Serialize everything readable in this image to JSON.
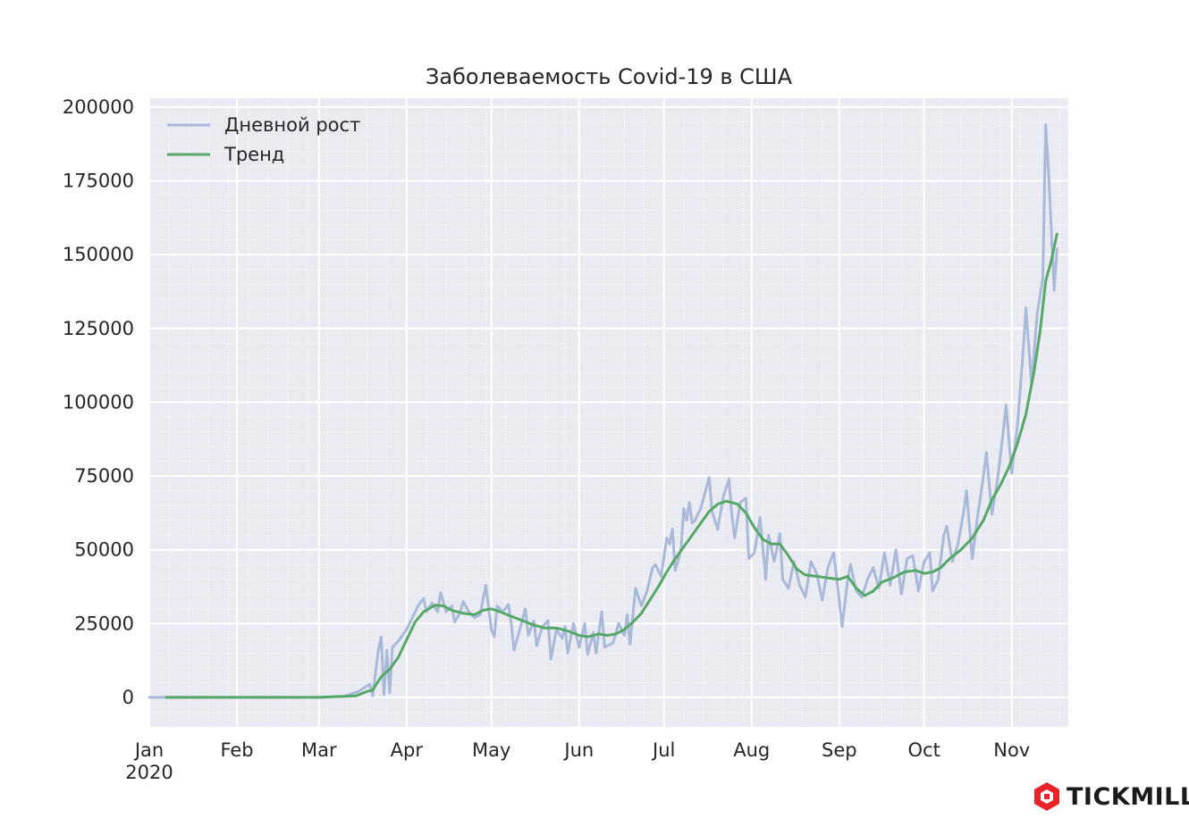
{
  "chart_data": {
    "type": "line",
    "title": "Заболеваемость Covid-19 в США",
    "xlabel": "",
    "ylabel": "",
    "x_range": [
      "2020-01-01",
      "2020-11-21"
    ],
    "ylim": [
      -10000,
      203000
    ],
    "y_ticks": [
      0,
      25000,
      50000,
      75000,
      100000,
      125000,
      150000,
      175000,
      200000
    ],
    "x_ticks": [
      {
        "date": "2020-01-01",
        "label": "Jan",
        "sublabel": "2020"
      },
      {
        "date": "2020-02-01",
        "label": "Feb"
      },
      {
        "date": "2020-03-01",
        "label": "Mar"
      },
      {
        "date": "2020-04-01",
        "label": "Apr"
      },
      {
        "date": "2020-05-01",
        "label": "May"
      },
      {
        "date": "2020-06-01",
        "label": "Jun"
      },
      {
        "date": "2020-07-01",
        "label": "Jul"
      },
      {
        "date": "2020-08-01",
        "label": "Aug"
      },
      {
        "date": "2020-09-01",
        "label": "Sep"
      },
      {
        "date": "2020-10-01",
        "label": "Oct"
      },
      {
        "date": "2020-11-01",
        "label": "Nov"
      }
    ],
    "grid": true,
    "legend": "top-left",
    "series": [
      {
        "name": "Дневной рост",
        "color": "#a9bad9",
        "points": [
          [
            "2020-01-01",
            0
          ],
          [
            "2020-03-01",
            0
          ],
          [
            "2020-03-10",
            400
          ],
          [
            "2020-03-15",
            2000
          ],
          [
            "2020-03-19",
            4500
          ],
          [
            "2020-03-20",
            500
          ],
          [
            "2020-03-22",
            16000
          ],
          [
            "2020-03-23",
            20500
          ],
          [
            "2020-03-24",
            1000
          ],
          [
            "2020-03-25",
            16000
          ],
          [
            "2020-03-26",
            1500
          ],
          [
            "2020-03-27",
            17000
          ],
          [
            "2020-03-29",
            19000
          ],
          [
            "2020-04-01",
            23000
          ],
          [
            "2020-04-03",
            27000
          ],
          [
            "2020-04-05",
            31000
          ],
          [
            "2020-04-07",
            33500
          ],
          [
            "2020-04-08",
            29000
          ],
          [
            "2020-04-10",
            32000
          ],
          [
            "2020-04-12",
            29000
          ],
          [
            "2020-04-13",
            35500
          ],
          [
            "2020-04-15",
            29000
          ],
          [
            "2020-04-17",
            31000
          ],
          [
            "2020-04-18",
            25500
          ],
          [
            "2020-04-20",
            29000
          ],
          [
            "2020-04-21",
            32500
          ],
          [
            "2020-04-23",
            29000
          ],
          [
            "2020-04-25",
            27000
          ],
          [
            "2020-04-27",
            28000
          ],
          [
            "2020-04-29",
            38000
          ],
          [
            "2020-05-01",
            23000
          ],
          [
            "2020-05-02",
            20500
          ],
          [
            "2020-05-03",
            31000
          ],
          [
            "2020-05-05",
            29000
          ],
          [
            "2020-05-07",
            31500
          ],
          [
            "2020-05-08",
            25000
          ],
          [
            "2020-05-09",
            16000
          ],
          [
            "2020-05-11",
            23000
          ],
          [
            "2020-05-13",
            30000
          ],
          [
            "2020-05-14",
            21000
          ],
          [
            "2020-05-16",
            26000
          ],
          [
            "2020-05-17",
            17500
          ],
          [
            "2020-05-19",
            24000
          ],
          [
            "2020-05-21",
            26000
          ],
          [
            "2020-05-22",
            13000
          ],
          [
            "2020-05-24",
            23000
          ],
          [
            "2020-05-26",
            20000
          ],
          [
            "2020-05-27",
            24000
          ],
          [
            "2020-05-28",
            15000
          ],
          [
            "2020-05-30",
            25000
          ],
          [
            "2020-06-01",
            17000
          ],
          [
            "2020-06-03",
            25000
          ],
          [
            "2020-06-04",
            14500
          ],
          [
            "2020-06-06",
            22000
          ],
          [
            "2020-06-07",
            15000
          ],
          [
            "2020-06-09",
            29000
          ],
          [
            "2020-06-10",
            17000
          ],
          [
            "2020-06-13",
            18500
          ],
          [
            "2020-06-15",
            25000
          ],
          [
            "2020-06-17",
            21000
          ],
          [
            "2020-06-18",
            28000
          ],
          [
            "2020-06-19",
            18000
          ],
          [
            "2020-06-21",
            37000
          ],
          [
            "2020-06-23",
            31000
          ],
          [
            "2020-06-25",
            36000
          ],
          [
            "2020-06-27",
            44000
          ],
          [
            "2020-06-28",
            45000
          ],
          [
            "2020-06-30",
            41000
          ],
          [
            "2020-07-02",
            54000
          ],
          [
            "2020-07-03",
            52000
          ],
          [
            "2020-07-04",
            57000
          ],
          [
            "2020-07-05",
            43000
          ],
          [
            "2020-07-07",
            50000
          ],
          [
            "2020-07-08",
            64000
          ],
          [
            "2020-07-09",
            60000
          ],
          [
            "2020-07-10",
            66000
          ],
          [
            "2020-07-11",
            59000
          ],
          [
            "2020-07-12",
            60000
          ],
          [
            "2020-07-14",
            64000
          ],
          [
            "2020-07-16",
            71000
          ],
          [
            "2020-07-17",
            74500
          ],
          [
            "2020-07-18",
            63000
          ],
          [
            "2020-07-20",
            57000
          ],
          [
            "2020-07-22",
            68000
          ],
          [
            "2020-07-24",
            74000
          ],
          [
            "2020-07-25",
            62000
          ],
          [
            "2020-07-26",
            54000
          ],
          [
            "2020-07-28",
            66000
          ],
          [
            "2020-07-30",
            67500
          ],
          [
            "2020-07-31",
            47000
          ],
          [
            "2020-08-02",
            49000
          ],
          [
            "2020-08-04",
            61000
          ],
          [
            "2020-08-06",
            40000
          ],
          [
            "2020-08-07",
            55000
          ],
          [
            "2020-08-09",
            46000
          ],
          [
            "2020-08-11",
            55500
          ],
          [
            "2020-08-12",
            40000
          ],
          [
            "2020-08-14",
            37000
          ],
          [
            "2020-08-16",
            46000
          ],
          [
            "2020-08-18",
            38000
          ],
          [
            "2020-08-20",
            34000
          ],
          [
            "2020-08-22",
            46000
          ],
          [
            "2020-08-24",
            42000
          ],
          [
            "2020-08-26",
            33000
          ],
          [
            "2020-08-28",
            44000
          ],
          [
            "2020-08-30",
            49000
          ],
          [
            "2020-09-01",
            33000
          ],
          [
            "2020-09-02",
            24000
          ],
          [
            "2020-09-04",
            40000
          ],
          [
            "2020-09-05",
            45000
          ],
          [
            "2020-09-07",
            36000
          ],
          [
            "2020-09-09",
            34000
          ],
          [
            "2020-09-11",
            40000
          ],
          [
            "2020-09-13",
            44000
          ],
          [
            "2020-09-15",
            37000
          ],
          [
            "2020-09-17",
            49000
          ],
          [
            "2020-09-19",
            38000
          ],
          [
            "2020-09-21",
            50000
          ],
          [
            "2020-09-23",
            35000
          ],
          [
            "2020-09-25",
            47000
          ],
          [
            "2020-09-27",
            48000
          ],
          [
            "2020-09-29",
            36000
          ],
          [
            "2020-10-01",
            46000
          ],
          [
            "2020-10-03",
            49000
          ],
          [
            "2020-10-04",
            36000
          ],
          [
            "2020-10-06",
            40000
          ],
          [
            "2020-10-08",
            55000
          ],
          [
            "2020-10-09",
            58000
          ],
          [
            "2020-10-11",
            46000
          ],
          [
            "2020-10-13",
            52000
          ],
          [
            "2020-10-15",
            63000
          ],
          [
            "2020-10-16",
            70000
          ],
          [
            "2020-10-18",
            47000
          ],
          [
            "2020-10-20",
            62000
          ],
          [
            "2020-10-22",
            75000
          ],
          [
            "2020-10-23",
            83000
          ],
          [
            "2020-10-25",
            62000
          ],
          [
            "2020-10-27",
            74000
          ],
          [
            "2020-10-29",
            90000
          ],
          [
            "2020-10-30",
            99000
          ],
          [
            "2020-11-01",
            76000
          ],
          [
            "2020-11-03",
            92000
          ],
          [
            "2020-11-05",
            117000
          ],
          [
            "2020-11-06",
            132000
          ],
          [
            "2020-11-08",
            106000
          ],
          [
            "2020-11-10",
            130000
          ],
          [
            "2020-11-12",
            142000
          ],
          [
            "2020-11-13",
            194000
          ],
          [
            "2020-11-14",
            178000
          ],
          [
            "2020-11-16",
            138000
          ],
          [
            "2020-11-17",
            152000
          ]
        ]
      },
      {
        "name": "Тренд",
        "color": "#55a868",
        "points": [
          [
            "2020-01-07",
            0
          ],
          [
            "2020-03-01",
            0
          ],
          [
            "2020-03-14",
            500
          ],
          [
            "2020-03-18",
            2000
          ],
          [
            "2020-03-20",
            2500
          ],
          [
            "2020-03-23",
            7000
          ],
          [
            "2020-03-26",
            9500
          ],
          [
            "2020-03-29",
            13500
          ],
          [
            "2020-04-01",
            19500
          ],
          [
            "2020-04-04",
            25500
          ],
          [
            "2020-04-07",
            29000
          ],
          [
            "2020-04-11",
            31200
          ],
          [
            "2020-04-14",
            31000
          ],
          [
            "2020-04-17",
            29500
          ],
          [
            "2020-04-21",
            28500
          ],
          [
            "2020-04-25",
            28000
          ],
          [
            "2020-04-28",
            29500
          ],
          [
            "2020-05-01",
            30000
          ],
          [
            "2020-05-04",
            29000
          ],
          [
            "2020-05-08",
            27500
          ],
          [
            "2020-05-12",
            26000
          ],
          [
            "2020-05-16",
            24500
          ],
          [
            "2020-05-20",
            23500
          ],
          [
            "2020-05-24",
            23500
          ],
          [
            "2020-05-28",
            22500
          ],
          [
            "2020-06-01",
            21000
          ],
          [
            "2020-06-04",
            20500
          ],
          [
            "2020-06-08",
            21500
          ],
          [
            "2020-06-11",
            21000
          ],
          [
            "2020-06-14",
            21500
          ],
          [
            "2020-06-17",
            23000
          ],
          [
            "2020-06-20",
            25500
          ],
          [
            "2020-06-23",
            28500
          ],
          [
            "2020-06-26",
            33000
          ],
          [
            "2020-06-29",
            37500
          ],
          [
            "2020-07-02",
            42500
          ],
          [
            "2020-07-05",
            47000
          ],
          [
            "2020-07-08",
            51000
          ],
          [
            "2020-07-11",
            55000
          ],
          [
            "2020-07-14",
            59000
          ],
          [
            "2020-07-17",
            63000
          ],
          [
            "2020-07-20",
            65500
          ],
          [
            "2020-07-23",
            66500
          ],
          [
            "2020-07-27",
            65500
          ],
          [
            "2020-07-30",
            62500
          ],
          [
            "2020-08-02",
            57500
          ],
          [
            "2020-08-05",
            53500
          ],
          [
            "2020-08-08",
            52000
          ],
          [
            "2020-08-11",
            52000
          ],
          [
            "2020-08-14",
            48000
          ],
          [
            "2020-08-17",
            43500
          ],
          [
            "2020-08-20",
            41500
          ],
          [
            "2020-08-24",
            41000
          ],
          [
            "2020-08-28",
            40500
          ],
          [
            "2020-09-01",
            40000
          ],
          [
            "2020-09-04",
            41000
          ],
          [
            "2020-09-07",
            37000
          ],
          [
            "2020-09-10",
            34500
          ],
          [
            "2020-09-13",
            36000
          ],
          [
            "2020-09-16",
            39000
          ],
          [
            "2020-09-20",
            40500
          ],
          [
            "2020-09-24",
            42500
          ],
          [
            "2020-09-28",
            43000
          ],
          [
            "2020-10-01",
            42000
          ],
          [
            "2020-10-04",
            42500
          ],
          [
            "2020-10-07",
            44000
          ],
          [
            "2020-10-10",
            47000
          ],
          [
            "2020-10-14",
            50000
          ],
          [
            "2020-10-18",
            54000
          ],
          [
            "2020-10-22",
            60000
          ],
          [
            "2020-10-25",
            67000
          ],
          [
            "2020-10-28",
            72000
          ],
          [
            "2020-10-31",
            78000
          ],
          [
            "2020-11-03",
            86000
          ],
          [
            "2020-11-06",
            96000
          ],
          [
            "2020-11-09",
            111000
          ],
          [
            "2020-11-11",
            124000
          ],
          [
            "2020-11-13",
            141000
          ],
          [
            "2020-11-15",
            148000
          ],
          [
            "2020-11-17",
            157000
          ]
        ]
      }
    ]
  },
  "branding": {
    "logo_text": "TICKMILL",
    "logo_color": "#e8232a"
  }
}
